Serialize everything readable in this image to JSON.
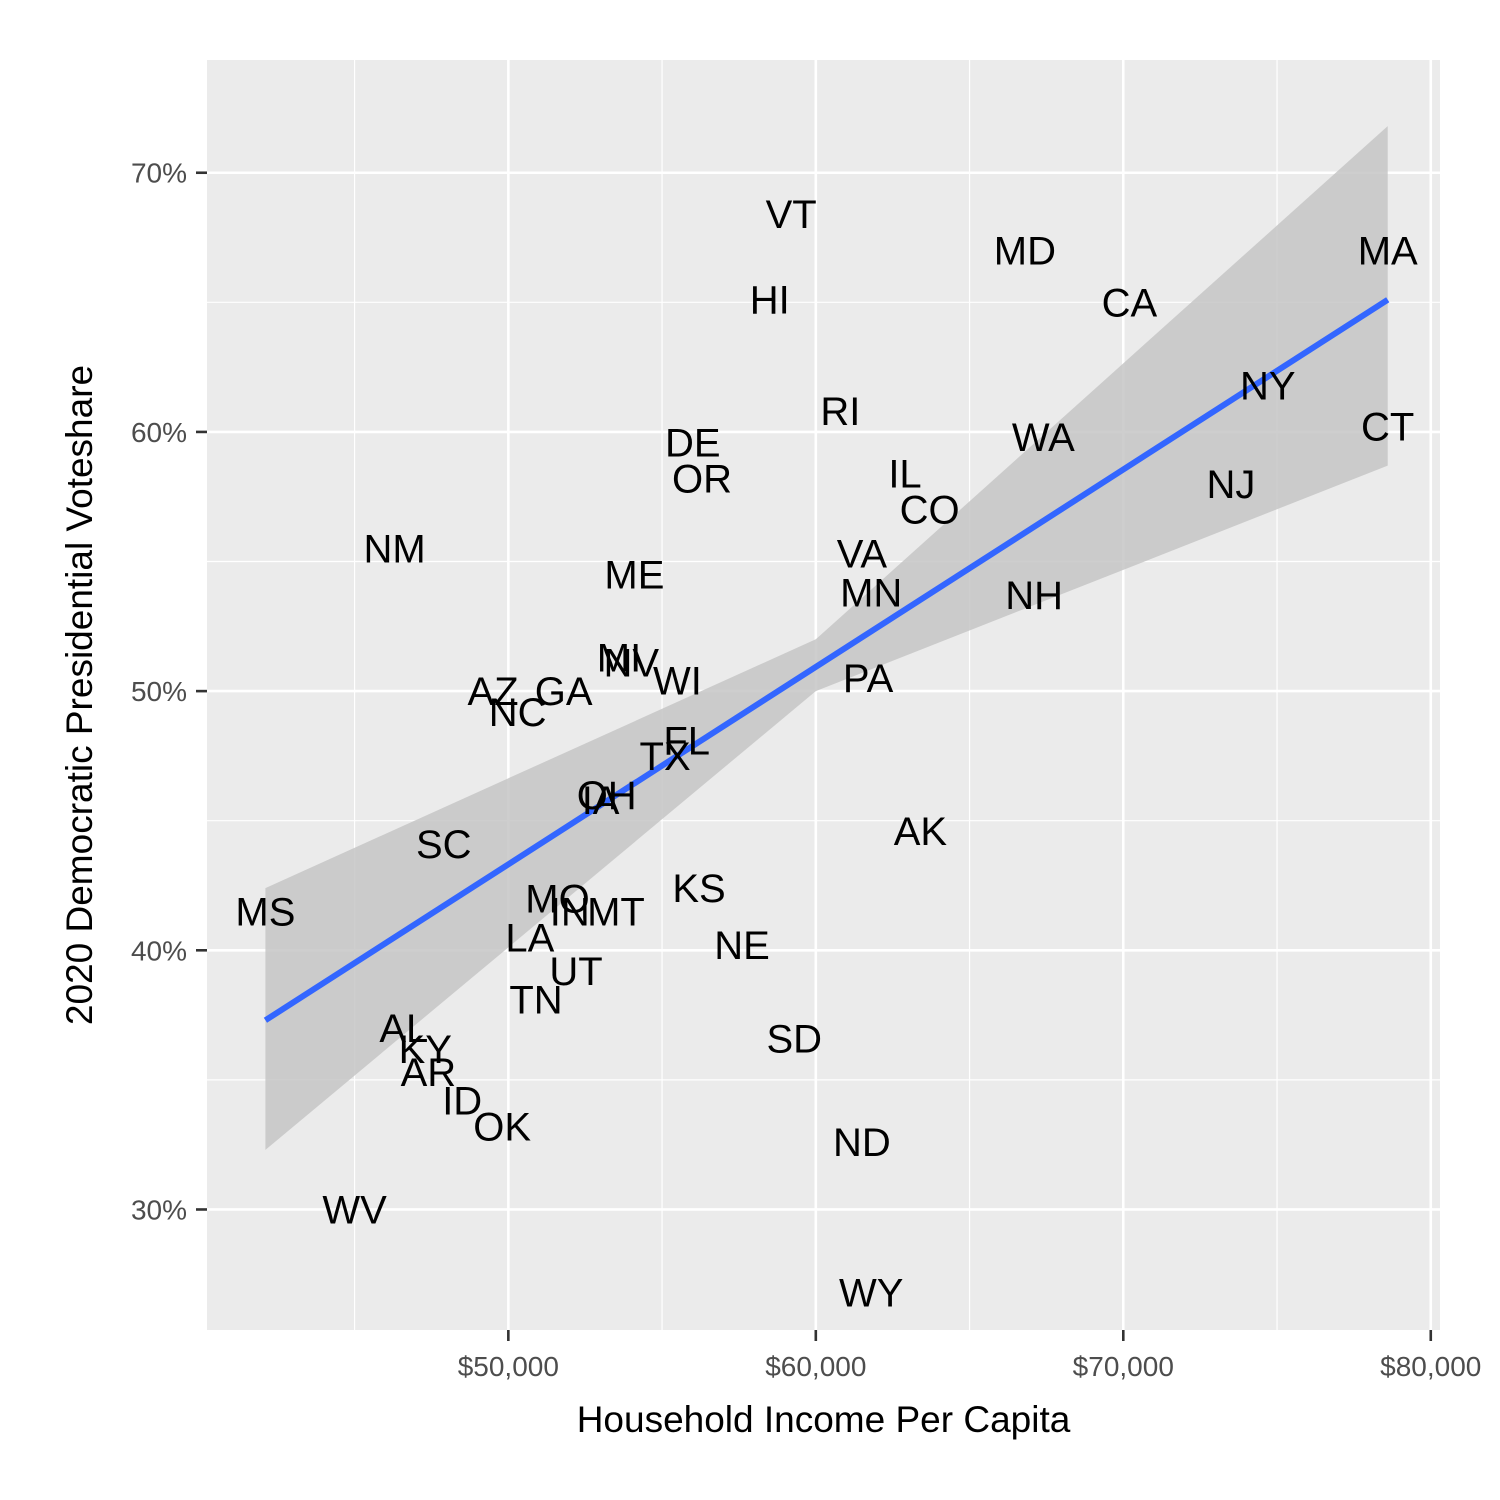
{
  "colors": {
    "panel_background": "#ebebeb",
    "gridline": "#ffffff",
    "trend_line": "#3366ff",
    "confidence_band": "#c6c6c6",
    "label_text": "#000000"
  },
  "chart_data": {
    "type": "scatter",
    "subtype": "text-labeled scatter with linear fit and 95% confidence band",
    "xlabel": "Household Income Per Capita",
    "ylabel": "2020 Democratic Presidential Voteshare",
    "xlim": [
      40200,
      80300
    ],
    "ylim": [
      0.2535,
      0.7435
    ],
    "x_ticks": [
      {
        "value": 50000,
        "label": "$50,000"
      },
      {
        "value": 60000,
        "label": "$60,000"
      },
      {
        "value": 70000,
        "label": "$70,000"
      },
      {
        "value": 80000,
        "label": "$80,000"
      }
    ],
    "y_ticks": [
      {
        "value": 0.3,
        "label": "30%"
      },
      {
        "value": 0.4,
        "label": "40%"
      },
      {
        "value": 0.5,
        "label": "50%"
      },
      {
        "value": 0.6,
        "label": "60%"
      },
      {
        "value": 0.7,
        "label": "70%"
      }
    ],
    "x_minor_ticks": [
      45000,
      55000,
      65000,
      75000
    ],
    "y_minor_ticks": [
      0.35,
      0.45,
      0.55,
      0.65
    ],
    "grid": true,
    "legend": "none",
    "points": [
      {
        "label": "MA",
        "x": 78600,
        "y": 0.67
      },
      {
        "label": "CT",
        "x": 78600,
        "y": 0.602
      },
      {
        "label": "NY",
        "x": 74700,
        "y": 0.618
      },
      {
        "label": "NJ",
        "x": 73500,
        "y": 0.58
      },
      {
        "label": "CA",
        "x": 70200,
        "y": 0.65
      },
      {
        "label": "MD",
        "x": 66800,
        "y": 0.67
      },
      {
        "label": "WA",
        "x": 67400,
        "y": 0.598
      },
      {
        "label": "NH",
        "x": 67100,
        "y": 0.537
      },
      {
        "label": "VT",
        "x": 59200,
        "y": 0.684
      },
      {
        "label": "HI",
        "x": 58500,
        "y": 0.651
      },
      {
        "label": "RI",
        "x": 60800,
        "y": 0.608
      },
      {
        "label": "IL",
        "x": 62900,
        "y": 0.584
      },
      {
        "label": "CO",
        "x": 63700,
        "y": 0.57
      },
      {
        "label": "VA",
        "x": 61500,
        "y": 0.553
      },
      {
        "label": "MN",
        "x": 61800,
        "y": 0.538
      },
      {
        "label": "PA",
        "x": 61700,
        "y": 0.505
      },
      {
        "label": "DE",
        "x": 56000,
        "y": 0.596
      },
      {
        "label": "OR",
        "x": 56300,
        "y": 0.582
      },
      {
        "label": "ME",
        "x": 54100,
        "y": 0.545
      },
      {
        "label": "NM",
        "x": 46300,
        "y": 0.555
      },
      {
        "label": "MI",
        "x": 53600,
        "y": 0.513
      },
      {
        "label": "NV",
        "x": 54000,
        "y": 0.511
      },
      {
        "label": "WI",
        "x": 55500,
        "y": 0.504
      },
      {
        "label": "AZ",
        "x": 49500,
        "y": 0.5
      },
      {
        "label": "GA",
        "x": 51800,
        "y": 0.5
      },
      {
        "label": "NC",
        "x": 50300,
        "y": 0.492
      },
      {
        "label": "FL",
        "x": 55800,
        "y": 0.481
      },
      {
        "label": "TX",
        "x": 55100,
        "y": 0.475
      },
      {
        "label": "OH",
        "x": 53200,
        "y": 0.46
      },
      {
        "label": "IA",
        "x": 53000,
        "y": 0.458
      },
      {
        "label": "AK",
        "x": 63400,
        "y": 0.446
      },
      {
        "label": "SC",
        "x": 47900,
        "y": 0.441
      },
      {
        "label": "KS",
        "x": 56200,
        "y": 0.424
      },
      {
        "label": "MO",
        "x": 51600,
        "y": 0.42
      },
      {
        "label": "IN",
        "x": 52000,
        "y": 0.415
      },
      {
        "label": "MT",
        "x": 53500,
        "y": 0.415
      },
      {
        "label": "MS",
        "x": 42100,
        "y": 0.415
      },
      {
        "label": "LA",
        "x": 50700,
        "y": 0.405
      },
      {
        "label": "NE",
        "x": 57600,
        "y": 0.402
      },
      {
        "label": "UT",
        "x": 52200,
        "y": 0.392
      },
      {
        "label": "TN",
        "x": 50900,
        "y": 0.381
      },
      {
        "label": "SD",
        "x": 59300,
        "y": 0.366
      },
      {
        "label": "AL",
        "x": 46600,
        "y": 0.37
      },
      {
        "label": "KY",
        "x": 47300,
        "y": 0.362
      },
      {
        "label": "AR",
        "x": 47400,
        "y": 0.353
      },
      {
        "label": "ID",
        "x": 48500,
        "y": 0.342
      },
      {
        "label": "OK",
        "x": 49800,
        "y": 0.332
      },
      {
        "label": "ND",
        "x": 61500,
        "y": 0.326
      },
      {
        "label": "WV",
        "x": 45000,
        "y": 0.3
      },
      {
        "label": "WY",
        "x": 61800,
        "y": 0.268
      }
    ],
    "fit": {
      "method": "linear",
      "x": [
        42100,
        78600
      ],
      "y": [
        0.373,
        0.651
      ]
    },
    "confidence_band": {
      "x": [
        42100,
        60000,
        78600
      ],
      "lower": [
        0.323,
        0.5,
        0.587
      ],
      "upper": [
        0.424,
        0.52,
        0.718
      ]
    }
  }
}
